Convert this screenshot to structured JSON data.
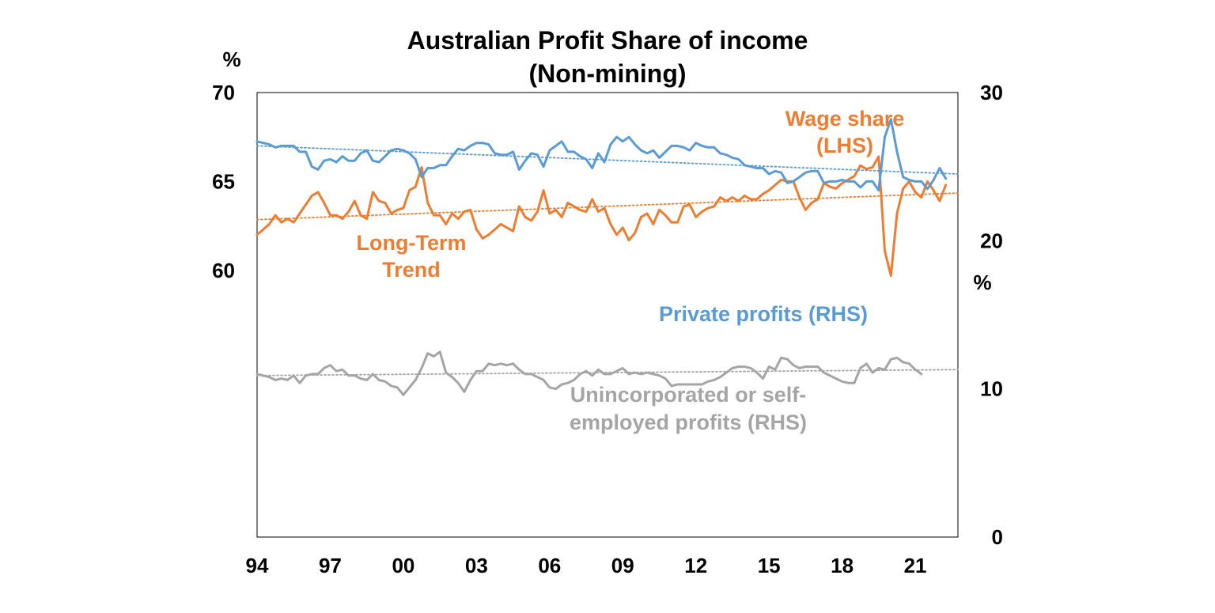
{
  "chart_data": {
    "type": "line",
    "title_line1": "Australian Profit Share of income",
    "title_line2": "(Non-mining)",
    "left_axis": {
      "unit": "%",
      "ylim": [
        45,
        70
      ],
      "ticks": [
        60,
        65,
        70
      ]
    },
    "right_axis": {
      "unit": "%",
      "ylim": [
        0,
        30
      ],
      "ticks": [
        0,
        10,
        20,
        30
      ]
    },
    "x_axis": {
      "xlim": [
        1994,
        2022.75
      ],
      "ticks": [
        {
          "year": 1994,
          "label": "94"
        },
        {
          "year": 1997,
          "label": "97"
        },
        {
          "year": 2000,
          "label": "00"
        },
        {
          "year": 2003,
          "label": "03"
        },
        {
          "year": 2006,
          "label": "06"
        },
        {
          "year": 2009,
          "label": "09"
        },
        {
          "year": 2012,
          "label": "12"
        },
        {
          "year": 2015,
          "label": "15"
        },
        {
          "year": 2018,
          "label": "18"
        },
        {
          "year": 2021,
          "label": "21"
        }
      ]
    },
    "series": [
      {
        "name": "Wage share (LHS)",
        "axis": "left",
        "color": "#ED7D31",
        "x_start": 1994.0,
        "x_step": 0.25,
        "values": [
          62.0,
          62.3,
          62.6,
          63.1,
          62.7,
          62.9,
          62.7,
          63.2,
          63.7,
          64.2,
          64.4,
          63.8,
          63.1,
          63.1,
          62.9,
          63.3,
          63.9,
          63.1,
          62.9,
          64.4,
          63.9,
          63.8,
          63.2,
          63.4,
          63.5,
          64.5,
          64.7,
          65.8,
          63.8,
          63.1,
          63.1,
          62.6,
          63.2,
          62.9,
          63.3,
          63.4,
          62.3,
          61.8,
          62.0,
          62.3,
          62.6,
          62.4,
          62.2,
          63.6,
          63.0,
          62.8,
          63.3,
          64.5,
          63.2,
          63.4,
          63.0,
          63.8,
          63.6,
          63.4,
          63.3,
          64.0,
          63.3,
          63.5,
          62.6,
          62.0,
          62.4,
          61.7,
          62.1,
          63.0,
          63.2,
          62.6,
          63.4,
          63.1,
          62.7,
          62.7,
          63.6,
          63.7,
          63.0,
          63.3,
          63.5,
          63.6,
          64.1,
          63.9,
          64.1,
          63.9,
          64.2,
          64.0,
          64.0,
          64.3,
          64.5,
          64.8,
          65.1,
          65.0,
          65.0,
          64.1,
          63.4,
          63.8,
          64.0,
          64.9,
          64.7,
          64.6,
          64.9,
          65.1,
          65.3,
          65.9,
          65.7,
          65.8,
          66.4,
          61.1,
          59.7,
          63.2,
          64.6,
          65.0,
          64.4,
          64.1,
          65.0,
          64.5,
          63.9,
          64.8
        ]
      },
      {
        "name": "Wage share trend",
        "axis": "left",
        "color": "#ED7D31",
        "trend": true,
        "x": [
          1994.0,
          2022.75
        ],
        "values": [
          62.85,
          64.35
        ]
      },
      {
        "name": "Private profits (RHS)",
        "axis": "right",
        "color": "#5B9BD5",
        "x_start": 1994.0,
        "x_step": 0.25,
        "values": [
          26.7,
          26.6,
          26.5,
          26.3,
          26.4,
          26.4,
          26.4,
          26.0,
          26.0,
          25.0,
          24.8,
          25.4,
          25.5,
          25.3,
          25.7,
          25.4,
          25.4,
          25.9,
          26.1,
          25.4,
          25.3,
          25.7,
          26.1,
          26.2,
          26.1,
          25.9,
          25.5,
          24.3,
          24.9,
          24.9,
          25.1,
          25.1,
          25.7,
          26.2,
          26.1,
          26.4,
          26.6,
          26.6,
          26.5,
          25.9,
          25.8,
          25.8,
          26.0,
          24.8,
          25.4,
          25.9,
          25.8,
          25.0,
          26.1,
          26.4,
          26.7,
          26.0,
          26.0,
          25.7,
          25.5,
          24.9,
          25.9,
          25.3,
          26.5,
          27.0,
          26.7,
          27.0,
          26.5,
          26.1,
          25.9,
          26.1,
          25.6,
          26.0,
          26.4,
          26.4,
          26.3,
          26.1,
          26.6,
          26.4,
          26.3,
          26.3,
          25.9,
          25.8,
          25.6,
          25.5,
          25.1,
          25.0,
          24.9,
          24.9,
          24.5,
          24.7,
          24.6,
          23.9,
          24.0,
          24.3,
          24.6,
          24.7,
          24.7,
          23.9,
          24.0,
          24.0,
          24.1,
          24.0,
          24.0,
          23.6,
          24.0,
          24.0,
          23.4,
          27.0,
          28.2,
          26.0,
          24.3,
          24.1,
          24.0,
          24.0,
          23.5,
          24.1,
          24.9,
          24.2
        ]
      },
      {
        "name": "Private profits trend",
        "axis": "right",
        "color": "#5B9BD5",
        "trend": true,
        "x": [
          1994.0,
          2022.75
        ],
        "values": [
          26.4,
          24.5
        ]
      },
      {
        "name": "Unincorporated or self-employed profits (RHS)",
        "axis": "right",
        "color": "#A5A5A5",
        "x_start": 1994.0,
        "x_step": 0.25,
        "values": [
          11.0,
          10.9,
          10.8,
          10.6,
          10.7,
          10.6,
          10.9,
          10.4,
          10.9,
          11.0,
          11.0,
          11.4,
          11.6,
          11.2,
          11.3,
          10.9,
          10.9,
          10.7,
          10.6,
          11.0,
          10.6,
          10.5,
          10.2,
          10.1,
          9.6,
          10.1,
          10.6,
          11.4,
          12.4,
          12.2,
          12.5,
          11.1,
          10.8,
          10.4,
          9.8,
          10.6,
          11.2,
          11.2,
          11.7,
          11.6,
          11.7,
          11.6,
          11.7,
          11.3,
          11.0,
          11.0,
          10.8,
          10.6,
          10.1,
          10.0,
          10.3,
          10.4,
          10.6,
          11.0,
          11.2,
          10.9,
          11.3,
          11.0,
          11.0,
          11.2,
          11.4,
          11.0,
          11.1,
          11.0,
          11.1,
          11.0,
          10.9,
          10.7,
          10.2,
          10.3,
          10.3,
          10.3,
          10.3,
          10.3,
          10.5,
          10.6,
          10.8,
          11.1,
          11.4,
          11.5,
          11.5,
          11.4,
          11.1,
          10.7,
          11.5,
          11.3,
          12.1,
          12.0,
          11.6,
          11.4,
          11.5,
          11.5,
          11.5,
          11.1,
          10.9,
          10.7,
          10.5,
          10.4,
          10.4,
          11.4,
          11.7,
          11.1,
          11.4,
          11.3,
          12.0,
          12.1,
          11.8,
          11.7,
          11.3,
          11.0
        ]
      },
      {
        "name": "Unincorporated trend",
        "axis": "right",
        "color": "#A5A5A5",
        "trend": true,
        "x": [
          1994.0,
          2022.75
        ],
        "values": [
          10.9,
          11.3
        ]
      }
    ],
    "annotations": {
      "wage_share_line1": "Wage share",
      "wage_share_line2": "(LHS)",
      "long_term_line1": "Long-Term",
      "long_term_line2": "Trend",
      "private_profits": "Private profits (RHS)",
      "unincorporated_line1": "Unincorporated or self-",
      "unincorporated_line2": "employed profits (RHS)"
    },
    "colors": {
      "orange": "#ED7D31",
      "blue": "#5B9BD5",
      "grey": "#A5A5A5"
    }
  }
}
